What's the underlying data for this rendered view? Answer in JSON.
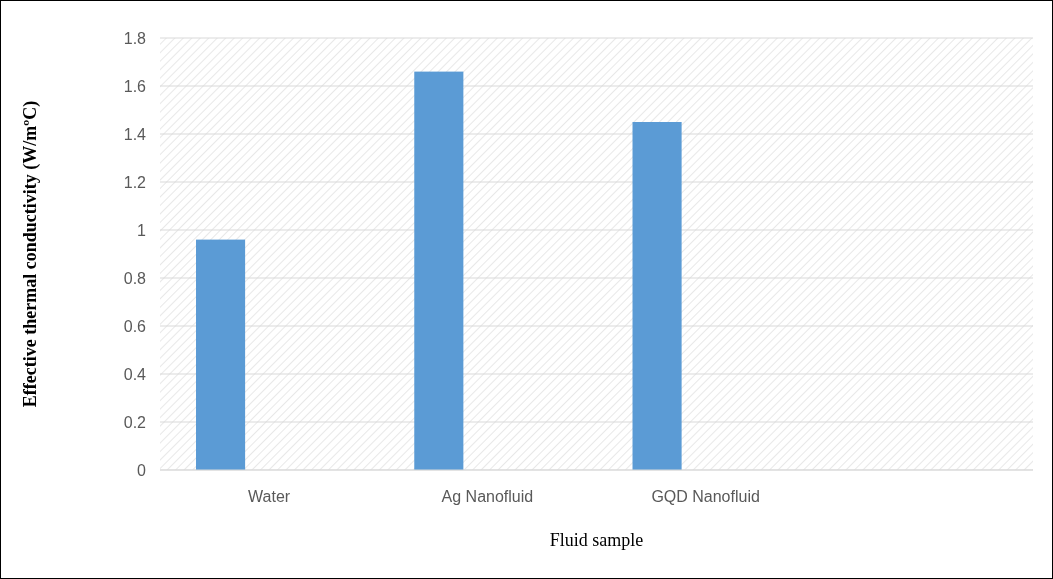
{
  "chart_data": {
    "type": "bar",
    "xlabel": "Fluid sample",
    "ylabel": "Effective thermal conductivity (W/mºC)",
    "categories": [
      "Water",
      "Ag Nanofluid",
      "GQD Nanofluid",
      null
    ],
    "values": [
      0.96,
      1.66,
      1.45,
      null
    ],
    "color": "#5b9bd5",
    "ylim": [
      0,
      1.8
    ],
    "yticks": [
      0,
      0.2,
      0.4,
      0.6,
      0.8,
      1,
      1.2,
      1.4,
      1.6,
      1.8
    ],
    "grid": "y"
  }
}
